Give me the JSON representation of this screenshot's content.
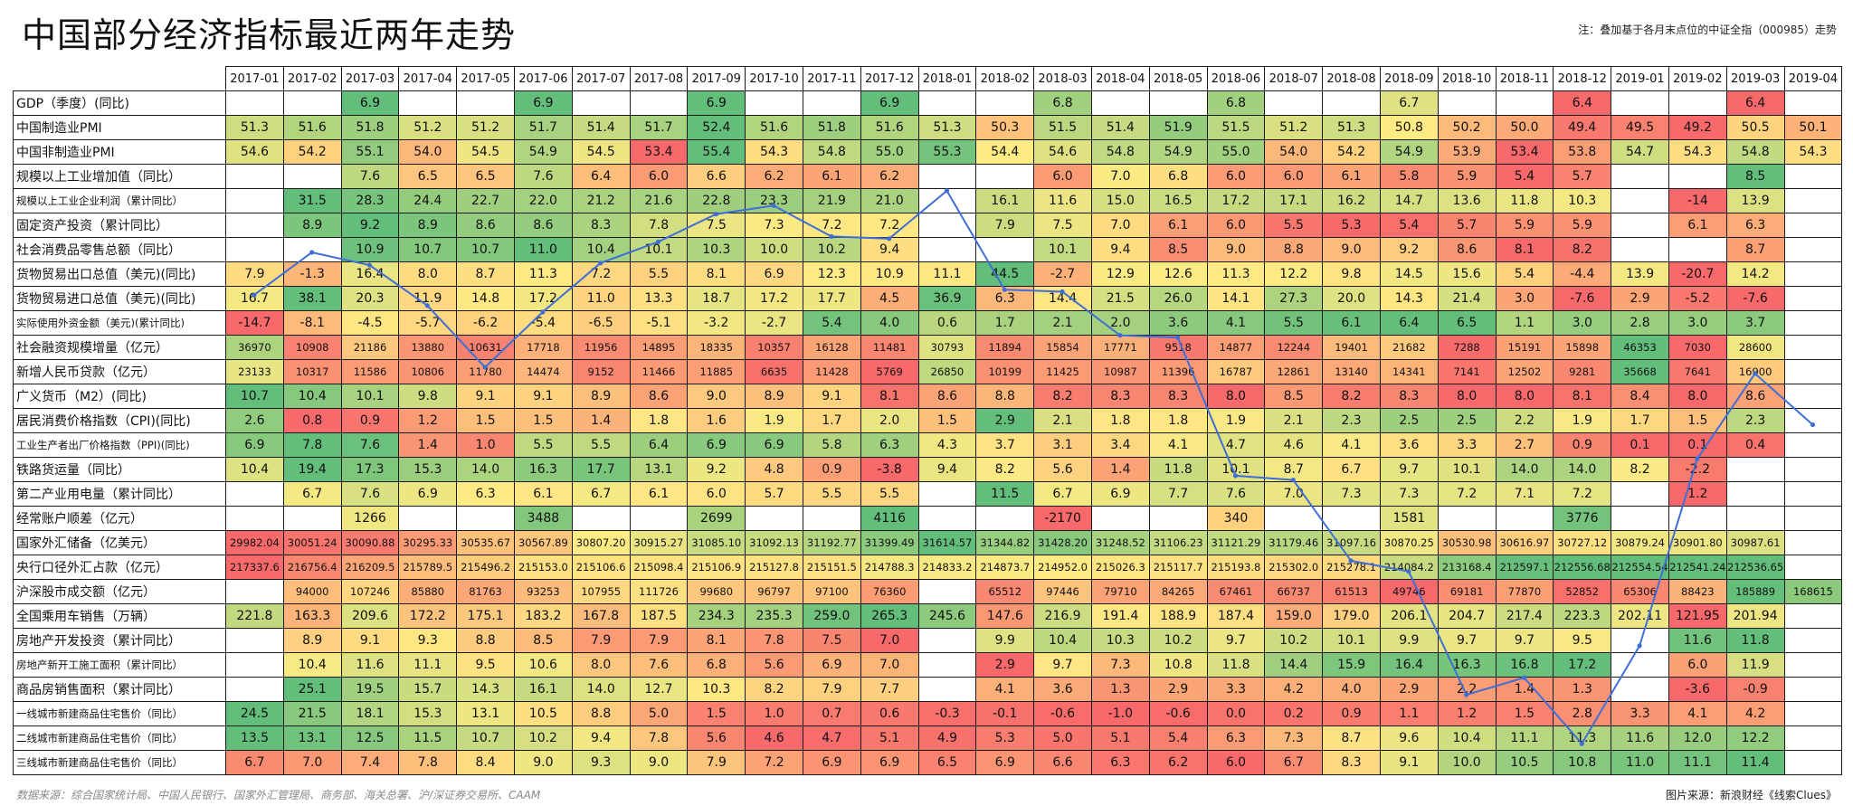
{
  "header": {
    "title": "中国部分经济指标最近两年走势",
    "note": "注：叠加基于各月末点位的中证全指（000985）走势"
  },
  "footer": {
    "source": "数据来源：综合国家统计局、中国人民银行、国家外汇管理局、商务部、海关总署、沪/深证券交易所、CAAM",
    "credit": "图片来源：新浪财经《线索Clues》"
  },
  "colors": {
    "good": "#63be7b",
    "mid": "#ffeb84",
    "bad": "#f8696b",
    "line": "#3f6fd6"
  },
  "chart_data": {
    "type": "table",
    "title": "中国部分经济指标最近两年走势",
    "months": [
      "2017-01",
      "2017-02",
      "2017-03",
      "2017-04",
      "2017-05",
      "2017-06",
      "2017-07",
      "2017-08",
      "2017-09",
      "2017-10",
      "2017-11",
      "2017-12",
      "2018-01",
      "2018-02",
      "2018-03",
      "2018-04",
      "2018-05",
      "2018-06",
      "2018-07",
      "2018-08",
      "2018-09",
      "2018-10",
      "2018-11",
      "2018-12",
      "2019-01",
      "2019-02",
      "2019-03",
      "2019-04"
    ],
    "rows": [
      {
        "label": "GDP（季度）(同比)",
        "small": false,
        "values": [
          "",
          "",
          "6.9",
          "",
          "",
          "6.9",
          "",
          "",
          "6.9",
          "",
          "",
          "6.9",
          "",
          "",
          "6.8",
          "",
          "",
          "6.8",
          "",
          "",
          "6.7",
          "",
          "",
          "6.4",
          "",
          "",
          "6.4",
          ""
        ]
      },
      {
        "label": "中国制造业PMI",
        "small": false,
        "values": [
          "51.3",
          "51.6",
          "51.8",
          "51.2",
          "51.2",
          "51.7",
          "51.4",
          "51.7",
          "52.4",
          "51.6",
          "51.8",
          "51.6",
          "51.3",
          "50.3",
          "51.5",
          "51.4",
          "51.9",
          "51.5",
          "51.2",
          "51.3",
          "50.8",
          "50.2",
          "50.0",
          "49.4",
          "49.5",
          "49.2",
          "50.5",
          "50.1"
        ]
      },
      {
        "label": "中国非制造业PMI",
        "small": false,
        "values": [
          "54.6",
          "54.2",
          "55.1",
          "54.0",
          "54.5",
          "54.9",
          "54.5",
          "53.4",
          "55.4",
          "54.3",
          "54.8",
          "55.0",
          "55.3",
          "54.4",
          "54.6",
          "54.8",
          "54.9",
          "55.0",
          "54.0",
          "54.2",
          "54.9",
          "53.9",
          "53.4",
          "53.8",
          "54.7",
          "54.3",
          "54.8",
          "54.3"
        ]
      },
      {
        "label": "规模以上工业增加值（同比）",
        "small": false,
        "values": [
          "",
          "",
          "7.6",
          "6.5",
          "6.5",
          "7.6",
          "6.4",
          "6.0",
          "6.6",
          "6.2",
          "6.1",
          "6.2",
          "",
          "",
          "6.0",
          "7.0",
          "6.8",
          "6.0",
          "6.0",
          "6.1",
          "5.8",
          "5.9",
          "5.4",
          "5.7",
          "",
          "",
          "8.5",
          ""
        ]
      },
      {
        "label": "规模以上工业企业利润（累计同比）",
        "small": true,
        "values": [
          "",
          "31.5",
          "28.3",
          "24.4",
          "22.7",
          "22.0",
          "21.2",
          "21.6",
          "22.8",
          "23.3",
          "21.9",
          "21.0",
          "",
          "16.1",
          "11.6",
          "15.0",
          "16.5",
          "17.2",
          "17.1",
          "16.2",
          "14.7",
          "13.6",
          "11.8",
          "10.3",
          "",
          "-14",
          "13.9",
          ""
        ]
      },
      {
        "label": "固定资产投资（累计同比）",
        "small": false,
        "values": [
          "",
          "8.9",
          "9.2",
          "8.9",
          "8.6",
          "8.6",
          "8.3",
          "7.8",
          "7.5",
          "7.3",
          "7.2",
          "7.2",
          "",
          "7.9",
          "7.5",
          "7.0",
          "6.1",
          "6.0",
          "5.5",
          "5.3",
          "5.4",
          "5.7",
          "5.9",
          "5.9",
          "",
          "6.1",
          "6.3",
          ""
        ]
      },
      {
        "label": "社会消费品零售总额（同比）",
        "small": false,
        "values": [
          "",
          "",
          "10.9",
          "10.7",
          "10.7",
          "11.0",
          "10.4",
          "10.1",
          "10.3",
          "10.0",
          "10.2",
          "9.4",
          "",
          "",
          "10.1",
          "9.4",
          "8.5",
          "9.0",
          "8.8",
          "9.0",
          "9.2",
          "8.6",
          "8.1",
          "8.2",
          "",
          "",
          "8.7",
          ""
        ]
      },
      {
        "label": "货物贸易出口总值（美元)(同比)",
        "small": false,
        "values": [
          "7.9",
          "-1.3",
          "16.4",
          "8.0",
          "8.7",
          "11.3",
          "7.2",
          "5.5",
          "8.1",
          "6.9",
          "12.3",
          "10.9",
          "11.1",
          "44.5",
          "-2.7",
          "12.9",
          "12.6",
          "11.3",
          "12.2",
          "9.8",
          "14.5",
          "15.6",
          "5.4",
          "-4.4",
          "13.9",
          "-20.7",
          "14.2",
          ""
        ]
      },
      {
        "label": "货物贸易进口总值（美元)(同比)",
        "small": false,
        "values": [
          "16.7",
          "38.1",
          "20.3",
          "11.9",
          "14.8",
          "17.2",
          "11.0",
          "13.3",
          "18.7",
          "17.2",
          "17.7",
          "4.5",
          "36.9",
          "6.3",
          "14.4",
          "21.5",
          "26.0",
          "14.1",
          "27.3",
          "20.0",
          "14.3",
          "21.4",
          "3.0",
          "-7.6",
          "2.9",
          "-5.2",
          "-7.6",
          ""
        ]
      },
      {
        "label": "实际使用外资金额（美元)(累计同比)",
        "small": true,
        "values": [
          "-14.7",
          "-8.1",
          "-4.5",
          "-5.7",
          "-6.2",
          "-5.4",
          "-6.5",
          "-5.1",
          "-3.2",
          "-2.7",
          "5.4",
          "4.0",
          "0.6",
          "1.7",
          "2.1",
          "2.0",
          "3.6",
          "4.1",
          "5.5",
          "6.1",
          "6.4",
          "6.5",
          "1.1",
          "3.0",
          "2.8",
          "3.0",
          "3.7",
          ""
        ]
      },
      {
        "label": "社会融资规模增量（亿元）",
        "small": false,
        "sm": true,
        "values": [
          "36970",
          "10908",
          "21186",
          "13880",
          "10631",
          "17718",
          "11956",
          "14895",
          "18335",
          "10357",
          "16128",
          "11481",
          "30793",
          "11894",
          "15854",
          "17771",
          "9518",
          "14877",
          "12244",
          "19401",
          "21682",
          "7288",
          "15191",
          "15898",
          "46353",
          "7030",
          "28600",
          ""
        ]
      },
      {
        "label": "新增人民币贷款（亿元）",
        "small": false,
        "sm": true,
        "values": [
          "23133",
          "10317",
          "11586",
          "10806",
          "11780",
          "14474",
          "9152",
          "11466",
          "11885",
          "6635",
          "11428",
          "5769",
          "26850",
          "10199",
          "11425",
          "10987",
          "11396",
          "16787",
          "12861",
          "13140",
          "14341",
          "7141",
          "12502",
          "9281",
          "35668",
          "7641",
          "16900",
          ""
        ]
      },
      {
        "label": "广义货币（M2）(同比)",
        "small": false,
        "values": [
          "10.7",
          "10.4",
          "10.1",
          "9.8",
          "9.1",
          "9.1",
          "8.9",
          "8.6",
          "9.0",
          "8.9",
          "9.1",
          "8.1",
          "8.6",
          "8.8",
          "8.2",
          "8.3",
          "8.3",
          "8.0",
          "8.5",
          "8.2",
          "8.3",
          "8.0",
          "8.0",
          "8.1",
          "8.4",
          "8.0",
          "8.6",
          ""
        ]
      },
      {
        "label": "居民消费价格指数（CPI)(同比)",
        "small": false,
        "values": [
          "2.6",
          "0.8",
          "0.9",
          "1.2",
          "1.5",
          "1.5",
          "1.4",
          "1.8",
          "1.6",
          "1.9",
          "1.7",
          "2.0",
          "1.5",
          "2.9",
          "2.1",
          "1.8",
          "1.8",
          "1.9",
          "2.1",
          "2.3",
          "2.5",
          "2.5",
          "2.2",
          "1.9",
          "1.7",
          "1.5",
          "2.3",
          ""
        ]
      },
      {
        "label": "工业生产者出厂价格指数（PPI)(同比)",
        "small": true,
        "values": [
          "6.9",
          "7.8",
          "7.6",
          "1.4",
          "1.0",
          "5.5",
          "5.5",
          "6.4",
          "6.9",
          "6.9",
          "5.8",
          "6.3",
          "4.3",
          "3.7",
          "3.1",
          "3.4",
          "4.1",
          "4.7",
          "4.6",
          "4.1",
          "3.6",
          "3.3",
          "2.7",
          "0.9",
          "0.1",
          "0.1",
          "0.4",
          ""
        ]
      },
      {
        "label": "铁路货运量（同比）",
        "small": false,
        "values": [
          "10.4",
          "19.4",
          "17.3",
          "15.3",
          "14.0",
          "16.3",
          "17.7",
          "13.1",
          "9.2",
          "4.8",
          "0.9",
          "-3.8",
          "9.4",
          "8.2",
          "5.6",
          "1.4",
          "11.8",
          "10.1",
          "8.7",
          "6.7",
          "9.7",
          "10.1",
          "14.0",
          "14.0",
          "8.2",
          "-2.2",
          "",
          ""
        ]
      },
      {
        "label": "第二产业用电量（累计同比）",
        "small": false,
        "values": [
          "",
          "6.7",
          "7.6",
          "6.9",
          "6.3",
          "6.1",
          "6.7",
          "6.1",
          "6.0",
          "5.7",
          "5.5",
          "5.5",
          "",
          "11.5",
          "6.7",
          "6.9",
          "7.7",
          "7.6",
          "7.0",
          "7.3",
          "7.3",
          "7.2",
          "7.1",
          "7.2",
          "",
          "1.2",
          "",
          ""
        ]
      },
      {
        "label": "经常账户顺差（亿元）",
        "small": false,
        "values": [
          "",
          "",
          "1266",
          "",
          "",
          "3488",
          "",
          "",
          "2699",
          "",
          "",
          "4116",
          "",
          "",
          "-2170",
          "",
          "",
          "340",
          "",
          "",
          "1581",
          "",
          "",
          "3776",
          "",
          "",
          "",
          ""
        ]
      },
      {
        "label": "国家外汇储备（亿美元）",
        "small": false,
        "sm": true,
        "values": [
          "29982.04",
          "30051.24",
          "30090.88",
          "30295.33",
          "30535.67",
          "30567.89",
          "30807.20",
          "30915.27",
          "31085.10",
          "31092.13",
          "31192.77",
          "31399.49",
          "31614.57",
          "31344.82",
          "31428.20",
          "31248.52",
          "31106.23",
          "31121.29",
          "31179.46",
          "31097.16",
          "30870.25",
          "30530.98",
          "30616.97",
          "30727.12",
          "30879.24",
          "30901.80",
          "30987.61",
          ""
        ]
      },
      {
        "label": "央行口径外汇占款（亿元）",
        "small": false,
        "sm": true,
        "values": [
          "217337.6",
          "216756.4",
          "216209.5",
          "215789.5",
          "215496.2",
          "215153.0",
          "215106.6",
          "215098.4",
          "215106.9",
          "215127.8",
          "215151.5",
          "214788.3",
          "214833.2",
          "214873.7",
          "214952.0",
          "215026.3",
          "215117.7",
          "215193.8",
          "215302.0",
          "215278.1",
          "214084.2",
          "213168.4",
          "212597.1",
          "212556.68",
          "212554.54",
          "212541.24",
          "212536.65",
          ""
        ]
      },
      {
        "label": "沪深股市成交额（亿元）",
        "small": false,
        "sm": true,
        "values": [
          "",
          "94000",
          "107246",
          "85880",
          "81763",
          "93253",
          "107955",
          "111726",
          "99680",
          "96797",
          "97100",
          "76360",
          "",
          "65512",
          "97446",
          "79710",
          "84265",
          "67461",
          "66737",
          "61513",
          "49746",
          "69181",
          "77870",
          "52852",
          "65306",
          "88423",
          "185889",
          "168615"
        ]
      },
      {
        "label": "全国乘用车销售（万辆）",
        "small": false,
        "values": [
          "221.8",
          "163.3",
          "209.6",
          "172.2",
          "175.1",
          "183.2",
          "167.8",
          "187.5",
          "234.3",
          "235.3",
          "259.0",
          "265.3",
          "245.6",
          "147.6",
          "216.9",
          "191.4",
          "188.9",
          "187.4",
          "159.0",
          "179.0",
          "206.1",
          "204.7",
          "217.4",
          "223.3",
          "202.11",
          "121.95",
          "201.94",
          ""
        ]
      },
      {
        "label": "房地产开发投资（累计同比）",
        "small": false,
        "values": [
          "",
          "8.9",
          "9.1",
          "9.3",
          "8.8",
          "8.5",
          "7.9",
          "7.9",
          "8.1",
          "7.8",
          "7.5",
          "7.0",
          "",
          "9.9",
          "10.4",
          "10.3",
          "10.2",
          "9.7",
          "10.2",
          "10.1",
          "9.9",
          "9.7",
          "9.7",
          "9.5",
          "",
          "11.6",
          "11.8",
          ""
        ]
      },
      {
        "label": "房地产新开工施工面积（累计同比）",
        "small": true,
        "values": [
          "",
          "10.4",
          "11.6",
          "11.1",
          "9.5",
          "10.6",
          "8.0",
          "7.6",
          "6.8",
          "5.6",
          "6.9",
          "7.0",
          "",
          "2.9",
          "9.7",
          "7.3",
          "10.8",
          "11.8",
          "14.4",
          "15.9",
          "16.4",
          "16.3",
          "16.8",
          "17.2",
          "",
          "6.0",
          "11.9",
          ""
        ]
      },
      {
        "label": "商品房销售面积（累计同比）",
        "small": false,
        "values": [
          "",
          "25.1",
          "19.5",
          "15.7",
          "14.3",
          "16.1",
          "14.0",
          "12.7",
          "10.3",
          "8.2",
          "7.9",
          "7.7",
          "",
          "4.1",
          "3.6",
          "1.3",
          "2.9",
          "3.3",
          "4.2",
          "4.0",
          "2.9",
          "2.2",
          "1.4",
          "1.3",
          "",
          "-3.6",
          "-0.9",
          ""
        ]
      },
      {
        "label": "一线城市新建商品住宅售价（同比）",
        "small": true,
        "values": [
          "24.5",
          "21.5",
          "18.1",
          "15.3",
          "13.1",
          "10.5",
          "8.8",
          "5.0",
          "1.5",
          "1.0",
          "0.7",
          "0.6",
          "-0.3",
          "-0.1",
          "-0.6",
          "-1.0",
          "-0.6",
          "0.0",
          "0.2",
          "0.9",
          "1.1",
          "1.2",
          "1.5",
          "2.8",
          "3.3",
          "4.1",
          "4.2",
          ""
        ]
      },
      {
        "label": "二线城市新建商品住宅售价（同比）",
        "small": true,
        "values": [
          "13.5",
          "13.1",
          "12.5",
          "11.5",
          "10.7",
          "10.2",
          "9.4",
          "7.8",
          "5.6",
          "4.6",
          "4.7",
          "5.1",
          "4.9",
          "5.3",
          "5.0",
          "5.1",
          "5.4",
          "6.3",
          "7.3",
          "8.7",
          "9.6",
          "10.4",
          "11.1",
          "11.3",
          "11.6",
          "12.0",
          "12.2",
          ""
        ]
      },
      {
        "label": "三线城市新建商品住宅售价（同比）",
        "small": true,
        "values": [
          "6.7",
          "7.0",
          "7.4",
          "7.8",
          "8.4",
          "9.0",
          "9.3",
          "9.0",
          "7.9",
          "7.2",
          "6.9",
          "6.9",
          "6.5",
          "6.9",
          "6.6",
          "6.3",
          "6.2",
          "6.0",
          "6.7",
          "8.3",
          "9.1",
          "10.0",
          "10.5",
          "10.8",
          "11.0",
          "11.1",
          "11.4",
          ""
        ]
      }
    ],
    "higherIsBad": [
      19
    ],
    "overlay_series": {
      "name": "中证全指（000985）",
      "values": [
        6250,
        6450,
        6390,
        6200,
        5910,
        6170,
        6400,
        6500,
        6630,
        6670,
        6525,
        6515,
        6740,
        6275,
        6265,
        6060,
        6050,
        5400,
        5380,
        5000,
        4950,
        4370,
        4450,
        4140,
        4600,
        5480,
        5880,
        5640
      ]
    }
  }
}
